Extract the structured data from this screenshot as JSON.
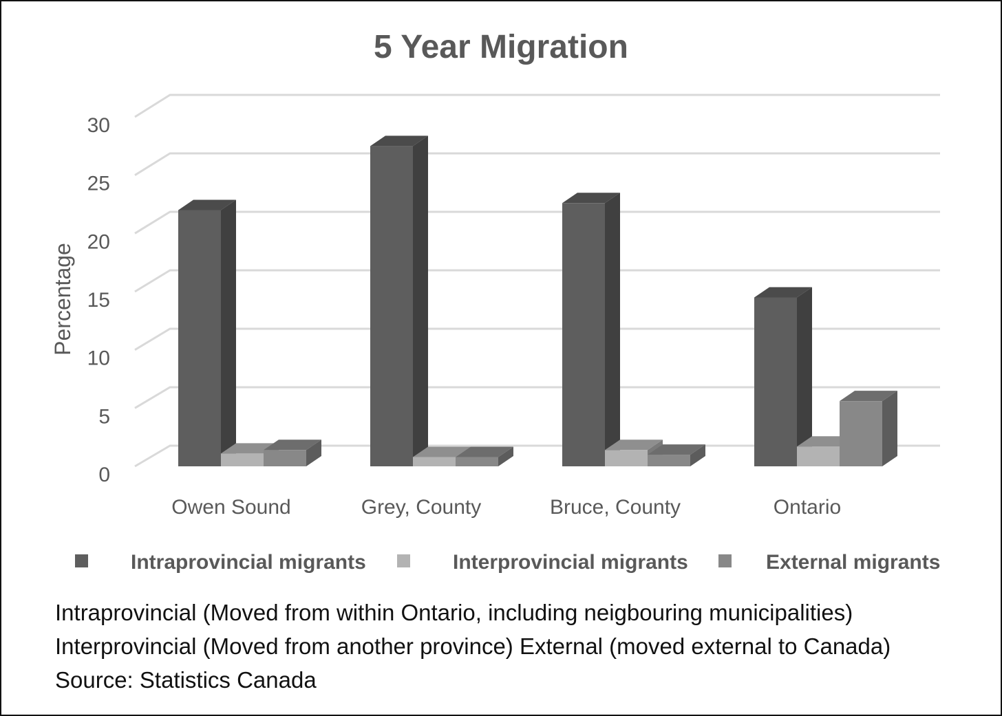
{
  "chart_data": {
    "type": "bar",
    "title": "5 Year Migration",
    "ylabel": "Percentage",
    "xlabel": "",
    "categories": [
      "Owen Sound",
      "Grey, County",
      "Bruce, County",
      "Ontario"
    ],
    "series": [
      {
        "name": "Intraprovincial migrants",
        "values": [
          22.0,
          27.5,
          22.6,
          14.5
        ],
        "color": "#5e5e5e"
      },
      {
        "name": "Interprovincial migrants",
        "values": [
          1.1,
          0.8,
          1.4,
          1.7
        ],
        "color": "#b3b3b3"
      },
      {
        "name": "External migrants",
        "values": [
          1.4,
          0.8,
          1.0,
          5.6
        ],
        "color": "#888888"
      }
    ],
    "ylim": [
      0,
      30
    ],
    "yticks": [
      "0",
      "5",
      "10",
      "15",
      "20",
      "25",
      "30"
    ],
    "grid": true,
    "legend": "bottom",
    "style": "3d-clustered-column"
  },
  "note": "Intraprovincial (Moved from within Ontario, including neigbouring municipalities) Interprovincial (Moved from another province) External (moved external to Canada)  Source: Statistics Canada"
}
